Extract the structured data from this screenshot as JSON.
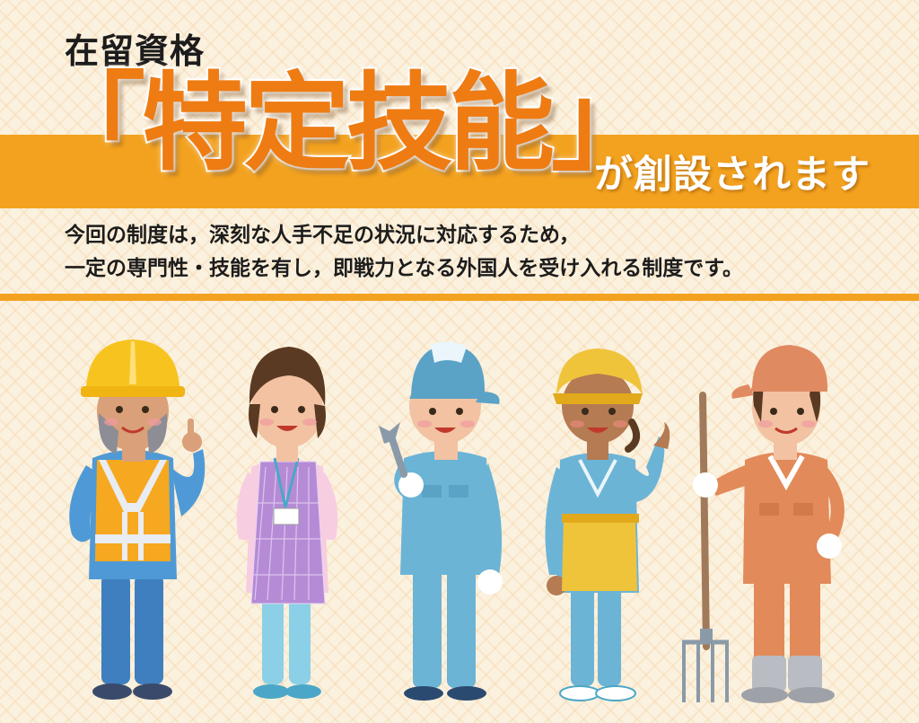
{
  "header": {
    "subtitle": "在留資格",
    "title": "「特定技能」",
    "tagline": "が創設されます"
  },
  "description": {
    "line1": "今回の制度は，深刻な人手不足の状況に対応するため，",
    "line2": "一定の専門性・技能を有し，即戦力となる外国人を受け入れる制度です。"
  },
  "colors": {
    "accent": "#f3a21f",
    "title": "#ee7c13",
    "background": "#fbf1df"
  },
  "illustration": {
    "figures": [
      "construction-worker",
      "care-worker",
      "mechanic",
      "food-service-worker",
      "farmer"
    ]
  }
}
